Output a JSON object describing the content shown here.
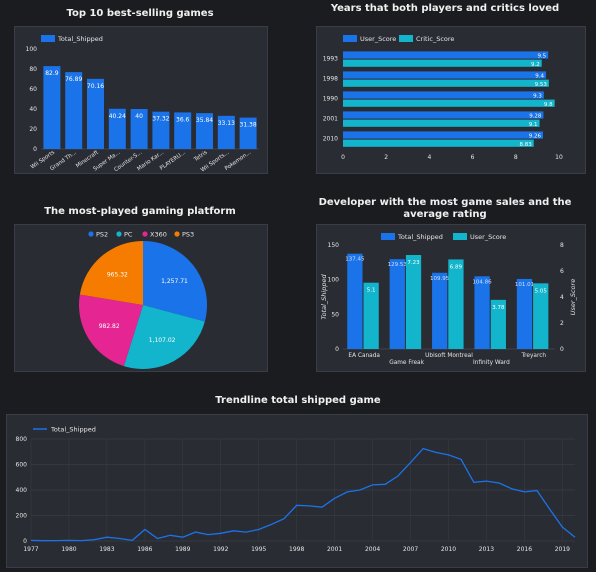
{
  "colors": {
    "blue": "#1a73e8",
    "cyan": "#12b5cb",
    "pink": "#e52592",
    "orange": "#f57c00",
    "text": "#e6e6e6",
    "grid": "#3e424b"
  },
  "chart_data": [
    {
      "id": "top10",
      "type": "bar",
      "title": "Top 10 best-selling games",
      "legend": [
        "Total_Shipped"
      ],
      "categories": [
        "Wii Sports",
        "Grand Th...",
        "Minecraft",
        "Super Ma...",
        "Counter-S...",
        "Mario Kar...",
        "PLAYERU...",
        "Tetris",
        "Wii Sports...",
        "Pokemon..."
      ],
      "values": [
        82.9,
        76.89,
        70.16,
        40.24,
        40,
        37.32,
        36.6,
        35.84,
        33.13,
        31.38
      ],
      "value_labels": [
        "82.9",
        "76.89",
        "70.16",
        "40.24",
        "40",
        "37.32",
        "36.6",
        "35.84",
        "33.13",
        "31.38"
      ],
      "ylim": [
        0,
        100
      ],
      "yticks": [
        "0",
        "20",
        "40",
        "60",
        "80",
        "100"
      ]
    },
    {
      "id": "years",
      "type": "bar",
      "orientation": "horizontal",
      "title": "Years that both players and critics loved",
      "legend": [
        "User_Score",
        "Critic_Score"
      ],
      "categories": [
        "1993",
        "1998",
        "1990",
        "2001",
        "2010"
      ],
      "series": [
        {
          "name": "User_Score",
          "values": [
            9.5,
            9.4,
            9.3,
            9.28,
            9.26
          ],
          "labels": [
            "9.5",
            "9.4",
            "9.3",
            "9.28",
            "9.26"
          ]
        },
        {
          "name": "Critic_Score",
          "values": [
            9.2,
            9.53,
            9.8,
            9.1,
            8.83
          ],
          "labels": [
            "9.2",
            "9.53",
            "9.8",
            "9.1",
            "8.83"
          ]
        }
      ],
      "xlim": [
        0,
        10
      ],
      "xticks": [
        "0",
        "2",
        "4",
        "6",
        "8",
        "10"
      ]
    },
    {
      "id": "platform",
      "type": "pie",
      "title": "The most-played gaming platform",
      "legend": [
        "PS2",
        "PC",
        "X360",
        "PS3"
      ],
      "values": [
        1257.71,
        1107.02,
        982.82,
        965.32
      ],
      "labels": [
        "1,257.71",
        "1,107.02",
        "982.82",
        "965.32"
      ]
    },
    {
      "id": "developer",
      "type": "bar",
      "title_lines": [
        "Developer with the most game sales and the",
        "average rating"
      ],
      "legend": [
        "Total_Shipped",
        "User_Score"
      ],
      "categories": [
        "EA Canada",
        "Game Freak",
        "Ubisoft Montreal",
        "Infinity Ward",
        "Treyarch"
      ],
      "series": [
        {
          "name": "Total_Shipped",
          "values": [
            137.45,
            129.53,
            109.95,
            104.86,
            101.01
          ],
          "labels": [
            "137.45",
            "129.53",
            "109.95",
            "104.86",
            "101.01"
          ]
        },
        {
          "name": "User_Score",
          "values": [
            5.1,
            7.23,
            6.89,
            3.78,
            5.05
          ],
          "labels": [
            "5.1",
            "7.23",
            "6.89",
            "3.78",
            "5.05"
          ]
        }
      ],
      "ylabel": "Total_Shipped",
      "y2label": "User_Score",
      "ylim": [
        0,
        150
      ],
      "y2lim": [
        0,
        8
      ],
      "yticks": [
        "0",
        "50",
        "100",
        "150"
      ],
      "y2ticks": [
        "0",
        "2",
        "4",
        "6",
        "8"
      ]
    },
    {
      "id": "trend",
      "type": "line",
      "title": "Trendline total shipped game",
      "legend": [
        "Total_Shipped"
      ],
      "x": [
        1977,
        1978,
        1979,
        1980,
        1981,
        1982,
        1983,
        1984,
        1985,
        1986,
        1987,
        1988,
        1989,
        1990,
        1991,
        1992,
        1993,
        1994,
        1995,
        1996,
        1997,
        1998,
        1999,
        2000,
        2001,
        2002,
        2003,
        2004,
        2005,
        2006,
        2007,
        2008,
        2009,
        2010,
        2011,
        2012,
        2013,
        2014,
        2015,
        2016,
        2017,
        2018,
        2019,
        2020
      ],
      "values": [
        5,
        2,
        3,
        5,
        3,
        10,
        30,
        20,
        5,
        90,
        20,
        45,
        30,
        70,
        50,
        60,
        80,
        70,
        90,
        130,
        175,
        280,
        275,
        265,
        335,
        385,
        400,
        440,
        445,
        510,
        615,
        725,
        695,
        675,
        640,
        460,
        470,
        455,
        410,
        385,
        395,
        250,
        110,
        30
      ],
      "xlim": [
        1977,
        2020
      ],
      "ylim": [
        0,
        800
      ],
      "xticks": [
        "1977",
        "1980",
        "1983",
        "1986",
        "1989",
        "1992",
        "1995",
        "1998",
        "2001",
        "2004",
        "2007",
        "2010",
        "2013",
        "2016",
        "2019"
      ],
      "yticks": [
        "0",
        "200",
        "400",
        "600",
        "800"
      ]
    }
  ]
}
